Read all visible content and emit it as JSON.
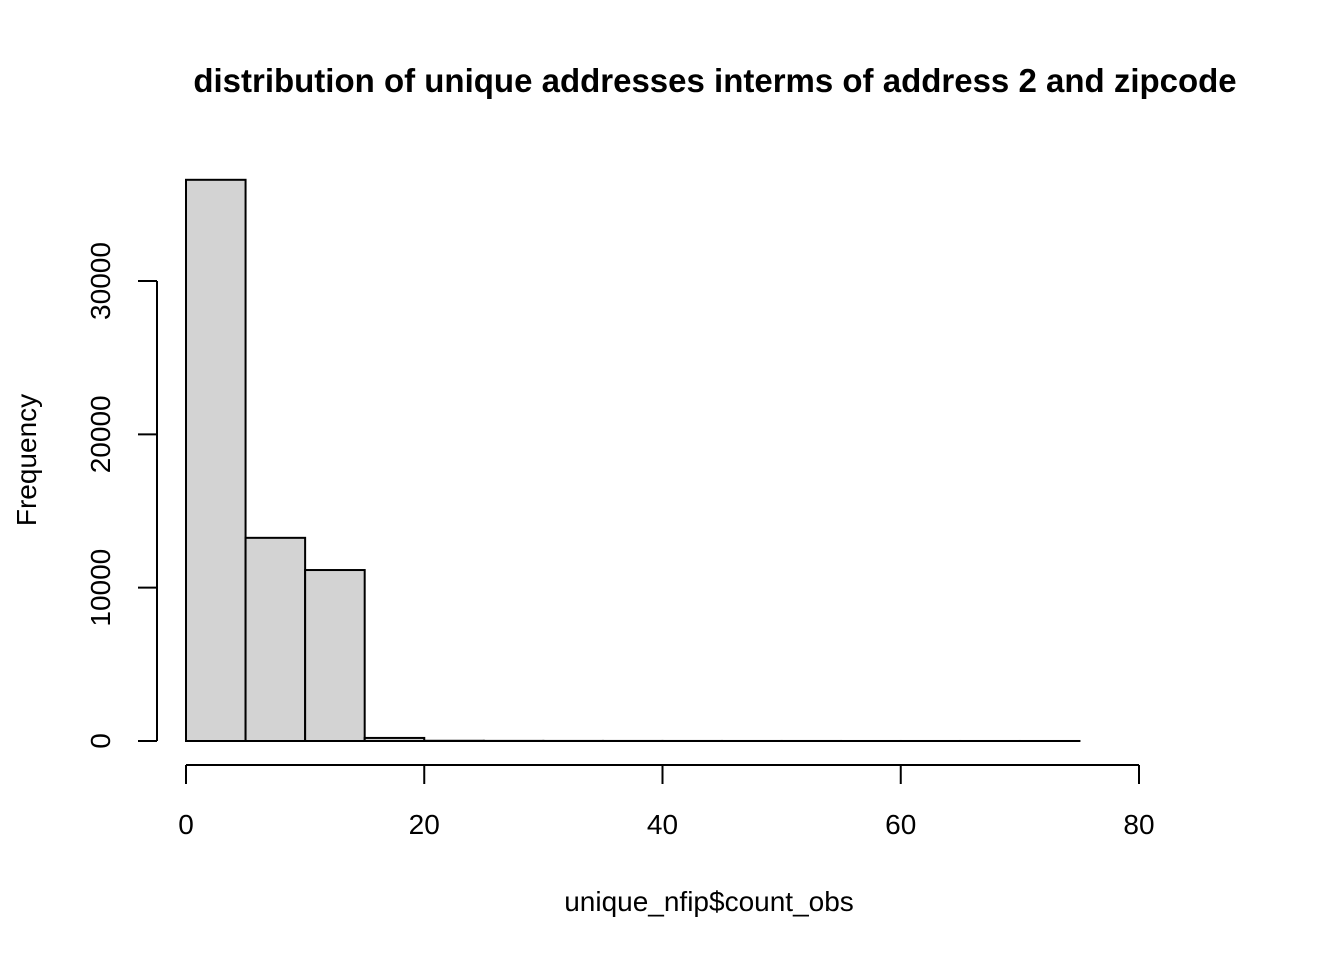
{
  "chart_data": {
    "type": "bar",
    "title": "distribution of unique addresses interms of address 2 and zipcode",
    "xlabel": "unique_nfip$count_obs",
    "ylabel": "Frequency",
    "xlim": [
      0,
      80
    ],
    "ylim": [
      0,
      40000
    ],
    "x_ticks": [
      0,
      20,
      40,
      60,
      80
    ],
    "y_ticks": [
      0,
      10000,
      20000,
      30000
    ],
    "bins": [
      {
        "start": 0,
        "end": 5,
        "count": 36600
      },
      {
        "start": 5,
        "end": 10,
        "count": 13250
      },
      {
        "start": 10,
        "end": 15,
        "count": 11150
      },
      {
        "start": 15,
        "end": 20,
        "count": 200
      },
      {
        "start": 20,
        "end": 25,
        "count": 15
      },
      {
        "start": 25,
        "end": 30,
        "count": 8
      },
      {
        "start": 30,
        "end": 35,
        "count": 5
      },
      {
        "start": 35,
        "end": 40,
        "count": 4
      },
      {
        "start": 40,
        "end": 45,
        "count": 3
      },
      {
        "start": 45,
        "end": 50,
        "count": 2
      },
      {
        "start": 50,
        "end": 55,
        "count": 2
      },
      {
        "start": 55,
        "end": 60,
        "count": 1
      },
      {
        "start": 60,
        "end": 65,
        "count": 1
      },
      {
        "start": 65,
        "end": 70,
        "count": 1
      },
      {
        "start": 70,
        "end": 75,
        "count": 1
      }
    ],
    "bar_fill": "#d3d3d3",
    "bar_stroke": "#000000",
    "grid": false
  }
}
